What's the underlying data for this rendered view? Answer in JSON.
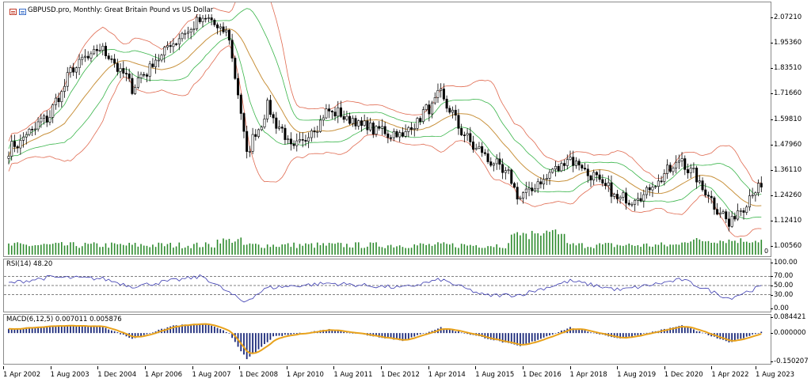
{
  "chart_window": {
    "symbol_title": "GBPUSD.pro, Monthly:  Great Britain Pound vs US Dollar",
    "indicator_badge": "0"
  },
  "colors": {
    "candle": "#000000",
    "ma": "#c8913c",
    "bollinger_outer": "#e06a50",
    "bollinger_inner": "#39b54a",
    "volume": "#2e8b2e",
    "rsi_line": "#3a3ab0",
    "macd_hist": "#1c2a7a",
    "macd_signal": "#e8a21c"
  },
  "price_axis": {
    "labels": [
      "2.07210",
      "1.95360",
      "1.83510",
      "1.71660",
      "1.59810",
      "1.47960",
      "1.36110",
      "1.24260",
      "1.12410",
      "1.00560"
    ],
    "range": [
      0.97,
      2.135
    ]
  },
  "rsi": {
    "title": "RSI(14) 48.20",
    "labels": [
      "100.00",
      "70.00",
      "50.00",
      "30.00",
      "0.00"
    ],
    "levels": [
      70,
      50,
      30
    ]
  },
  "macd": {
    "title": "MACD(6,12,5) 0.007011 0.005876",
    "labels": [
      "0.084421",
      "0.000000",
      "-0.150207"
    ],
    "range": [
      -0.150207,
      0.084421
    ]
  },
  "time_axis": {
    "labels": [
      "1 Apr 2002",
      "1 Aug 2003",
      "1 Dec 2004",
      "1 Apr 2006",
      "1 Aug 2007",
      "1 Dec 2008",
      "1 Apr 2010",
      "1 Aug 2011",
      "1 Dec 2012",
      "1 Apr 2014",
      "1 Aug 2015",
      "1 Dec 2016",
      "1 Apr 2018",
      "1 Aug 2019",
      "1 Dec 2020",
      "1 Apr 2022",
      "1 Aug 2023"
    ]
  },
  "chart_data": {
    "type": "candlestick",
    "period": "Monthly",
    "start": "2002-04",
    "end": "2023-08",
    "close_anchors": [
      {
        "date": "2002-04",
        "price": 1.45
      },
      {
        "date": "2003-06",
        "price": 1.62
      },
      {
        "date": "2004-02",
        "price": 1.84
      },
      {
        "date": "2004-12",
        "price": 1.93
      },
      {
        "date": "2005-10",
        "price": 1.75
      },
      {
        "date": "2006-12",
        "price": 1.96
      },
      {
        "date": "2007-11",
        "price": 2.07
      },
      {
        "date": "2008-07",
        "price": 1.98
      },
      {
        "date": "2009-01",
        "price": 1.44
      },
      {
        "date": "2009-08",
        "price": 1.65
      },
      {
        "date": "2010-05",
        "price": 1.45
      },
      {
        "date": "2011-05",
        "price": 1.64
      },
      {
        "date": "2012-06",
        "price": 1.56
      },
      {
        "date": "2013-06",
        "price": 1.52
      },
      {
        "date": "2014-07",
        "price": 1.71
      },
      {
        "date": "2015-04",
        "price": 1.5
      },
      {
        "date": "2016-06",
        "price": 1.33
      },
      {
        "date": "2016-10",
        "price": 1.23
      },
      {
        "date": "2018-03",
        "price": 1.42
      },
      {
        "date": "2019-08",
        "price": 1.22
      },
      {
        "date": "2020-03",
        "price": 1.24
      },
      {
        "date": "2021-05",
        "price": 1.41
      },
      {
        "date": "2022-09",
        "price": 1.11
      },
      {
        "date": "2023-07",
        "price": 1.29
      },
      {
        "date": "2023-08",
        "price": 1.27
      }
    ],
    "rsi_anchors": [
      {
        "date": "2002-04",
        "value": 55
      },
      {
        "date": "2003-06",
        "value": 68
      },
      {
        "date": "2004-12",
        "value": 65
      },
      {
        "date": "2005-10",
        "value": 48
      },
      {
        "date": "2007-10",
        "value": 70
      },
      {
        "date": "2008-12",
        "value": 14
      },
      {
        "date": "2009-08",
        "value": 45
      },
      {
        "date": "2011-05",
        "value": 55
      },
      {
        "date": "2013-06",
        "value": 45
      },
      {
        "date": "2014-07",
        "value": 63
      },
      {
        "date": "2015-10",
        "value": 28
      },
      {
        "date": "2016-10",
        "value": 30
      },
      {
        "date": "2018-03",
        "value": 60
      },
      {
        "date": "2019-08",
        "value": 40
      },
      {
        "date": "2021-05",
        "value": 63
      },
      {
        "date": "2022-09",
        "value": 22
      },
      {
        "date": "2023-08",
        "value": 48.2
      }
    ],
    "macd_anchors": [
      {
        "date": "2002-04",
        "value": 0.02
      },
      {
        "date": "2003-08",
        "value": 0.04
      },
      {
        "date": "2004-12",
        "value": 0.035
      },
      {
        "date": "2005-10",
        "value": -0.03
      },
      {
        "date": "2006-12",
        "value": 0.04
      },
      {
        "date": "2007-11",
        "value": 0.05
      },
      {
        "date": "2008-07",
        "value": 0.0
      },
      {
        "date": "2009-01",
        "value": -0.14
      },
      {
        "date": "2009-10",
        "value": -0.02
      },
      {
        "date": "2011-05",
        "value": 0.02
      },
      {
        "date": "2013-06",
        "value": -0.04
      },
      {
        "date": "2014-07",
        "value": 0.03
      },
      {
        "date": "2016-10",
        "value": -0.07
      },
      {
        "date": "2018-03",
        "value": 0.03
      },
      {
        "date": "2019-08",
        "value": -0.03
      },
      {
        "date": "2021-05",
        "value": 0.04
      },
      {
        "date": "2022-09",
        "value": -0.05
      },
      {
        "date": "2023-08",
        "value": 0.007
      }
    ]
  }
}
